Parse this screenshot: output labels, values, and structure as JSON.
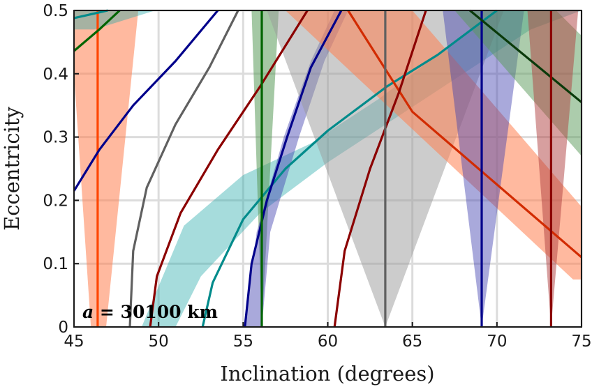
{
  "chart_data": {
    "type": "line",
    "title": "",
    "xlabel": "Inclination (degrees)",
    "ylabel": "Eccentricity",
    "xlim": [
      45,
      75
    ],
    "ylim": [
      0,
      0.5
    ],
    "xticks": [
      "45",
      "50",
      "55",
      "60",
      "65",
      "70",
      "75"
    ],
    "yticks": [
      "0",
      "0.1",
      "0.2",
      "0.3",
      "0.4",
      "0.5"
    ],
    "grid": true,
    "annotation": "a = 30100 km",
    "annotation_var": "a",
    "annotation_rest": " = 30100 km",
    "bands": [
      {
        "name": "orange band A",
        "color": "#ff7f50",
        "opacity": 0.55,
        "points": [
          [
            45,
            0.4
          ],
          [
            45,
            0.5
          ],
          [
            48.8,
            0.5
          ],
          [
            46.9,
            0
          ],
          [
            46.0,
            0
          ]
        ]
      },
      {
        "name": "teal band top",
        "color": "#20a8a8",
        "opacity": 0.4,
        "points": [
          [
            45,
            0.47
          ],
          [
            45,
            0.5
          ],
          [
            49.8,
            0.5
          ],
          [
            46.2,
            0.47
          ]
        ]
      },
      {
        "name": "teal band B",
        "color": "#20a8a8",
        "opacity": 0.4,
        "points": [
          [
            49,
            0
          ],
          [
            51.5,
            0.16
          ],
          [
            55,
            0.24
          ],
          [
            59,
            0.29
          ],
          [
            63,
            0.36
          ],
          [
            66,
            0.42
          ],
          [
            68.5,
            0.47
          ],
          [
            70,
            0.5
          ],
          [
            75,
            0.5
          ],
          [
            72,
            0.47
          ],
          [
            68,
            0.4
          ],
          [
            64,
            0.33
          ],
          [
            60,
            0.26
          ],
          [
            56,
            0.18
          ],
          [
            52.5,
            0.08
          ],
          [
            51,
            0.0
          ]
        ]
      },
      {
        "name": "green band C",
        "color": "#5a9a5a",
        "opacity": 0.55,
        "points": [
          [
            55.5,
            0.5
          ],
          [
            57.1,
            0.5
          ],
          [
            56.1,
            0
          ]
        ]
      },
      {
        "name": "blue band D",
        "color": "#4040b0",
        "opacity": 0.45,
        "points": [
          [
            55.1,
            0
          ],
          [
            55.8,
            0.15
          ],
          [
            57.4,
            0.3
          ],
          [
            59.0,
            0.42
          ],
          [
            60.4,
            0.5
          ],
          [
            61.2,
            0.5
          ],
          [
            59.8,
            0.42
          ],
          [
            58.3,
            0.3
          ],
          [
            56.6,
            0.15
          ],
          [
            56.1,
            0
          ]
        ]
      },
      {
        "name": "gray band E",
        "color": "#9a9a9a",
        "opacity": 0.5,
        "points": [
          [
            56.4,
            0.5
          ],
          [
            70.4,
            0.5
          ],
          [
            63.4,
            0
          ]
        ]
      },
      {
        "name": "orange band F",
        "color": "#ff7f50",
        "opacity": 0.55,
        "points": [
          [
            57.5,
            0.5
          ],
          [
            65.0,
            0.5
          ],
          [
            75,
            0.19
          ],
          [
            75,
            0.075
          ],
          [
            74.5,
            0.075
          ]
        ]
      },
      {
        "name": "blue band G",
        "color": "#4040b0",
        "opacity": 0.45,
        "points": [
          [
            66.8,
            0.5
          ],
          [
            71.6,
            0.5
          ],
          [
            69.1,
            0
          ]
        ]
      },
      {
        "name": "green band H",
        "color": "#5a9a5a",
        "opacity": 0.5,
        "points": [
          [
            67.5,
            0.5
          ],
          [
            73.5,
            0.5
          ],
          [
            75,
            0.46
          ],
          [
            75,
            0.27
          ]
        ]
      },
      {
        "name": "red band I",
        "color": "#b04040",
        "opacity": 0.5,
        "points": [
          [
            71.8,
            0.5
          ],
          [
            74.8,
            0.5
          ],
          [
            73.2,
            0
          ]
        ]
      }
    ],
    "series": [
      {
        "name": "orange vertical",
        "color": "#ff4500",
        "points": [
          [
            46.4,
            0
          ],
          [
            46.4,
            0.5
          ]
        ]
      },
      {
        "name": "green short",
        "color": "#006400",
        "points": [
          [
            45,
            0.436
          ],
          [
            46.5,
            0.47
          ],
          [
            47.7,
            0.5
          ]
        ]
      },
      {
        "name": "teal short",
        "color": "#008b8b",
        "points": [
          [
            45,
            0.488
          ],
          [
            47,
            0.5
          ]
        ]
      },
      {
        "name": "blue arc",
        "color": "#00008b",
        "points": [
          [
            45,
            0.215
          ],
          [
            46.5,
            0.28
          ],
          [
            48.5,
            0.35
          ],
          [
            51,
            0.42
          ],
          [
            53.5,
            0.5
          ]
        ]
      },
      {
        "name": "gray arc",
        "color": "#606060",
        "points": [
          [
            48.3,
            0
          ],
          [
            48.5,
            0.12
          ],
          [
            49.3,
            0.22
          ],
          [
            51,
            0.32
          ],
          [
            53,
            0.41
          ],
          [
            54.7,
            0.5
          ]
        ]
      },
      {
        "name": "red arc",
        "color": "#8b0000",
        "points": [
          [
            49.5,
            0
          ],
          [
            49.9,
            0.08
          ],
          [
            51.3,
            0.18
          ],
          [
            53.5,
            0.28
          ],
          [
            56,
            0.38
          ],
          [
            58.8,
            0.5
          ]
        ]
      },
      {
        "name": "teal arc",
        "color": "#008b8b",
        "points": [
          [
            52.6,
            0
          ],
          [
            53.2,
            0.07
          ],
          [
            55,
            0.17
          ],
          [
            57.5,
            0.25
          ],
          [
            60,
            0.31
          ],
          [
            63.5,
            0.38
          ],
          [
            66.5,
            0.43
          ],
          [
            70,
            0.5
          ]
        ]
      },
      {
        "name": "blue steep",
        "color": "#00008b",
        "points": [
          [
            55.1,
            0
          ],
          [
            55.5,
            0.1
          ],
          [
            56.4,
            0.2
          ],
          [
            57.6,
            0.3
          ],
          [
            59,
            0.41
          ],
          [
            60.8,
            0.5
          ]
        ]
      },
      {
        "name": "green vertical",
        "color": "#006400",
        "points": [
          [
            56.1,
            0
          ],
          [
            56.1,
            0.5
          ]
        ]
      },
      {
        "name": "red diagonal",
        "color": "#d22b00",
        "points": [
          [
            61.2,
            0.5
          ],
          [
            65,
            0.34
          ],
          [
            75,
            0.11
          ]
        ]
      },
      {
        "name": "red steep",
        "color": "#8b0000",
        "points": [
          [
            60.4,
            0
          ],
          [
            61,
            0.12
          ],
          [
            62.5,
            0.25
          ],
          [
            64.2,
            0.37
          ],
          [
            65.8,
            0.5
          ]
        ]
      },
      {
        "name": "gray vertical",
        "color": "#606060",
        "points": [
          [
            63.4,
            0
          ],
          [
            63.4,
            0.5
          ]
        ]
      },
      {
        "name": "blue vertical",
        "color": "#00008b",
        "points": [
          [
            69.1,
            0
          ],
          [
            69.1,
            0.5
          ]
        ]
      },
      {
        "name": "dark green diagonal",
        "color": "#0a3a0a",
        "points": [
          [
            68.4,
            0.5
          ],
          [
            75,
            0.355
          ]
        ]
      },
      {
        "name": "red vertical",
        "color": "#8b0000",
        "points": [
          [
            73.2,
            0
          ],
          [
            73.2,
            0.5
          ]
        ]
      }
    ]
  }
}
